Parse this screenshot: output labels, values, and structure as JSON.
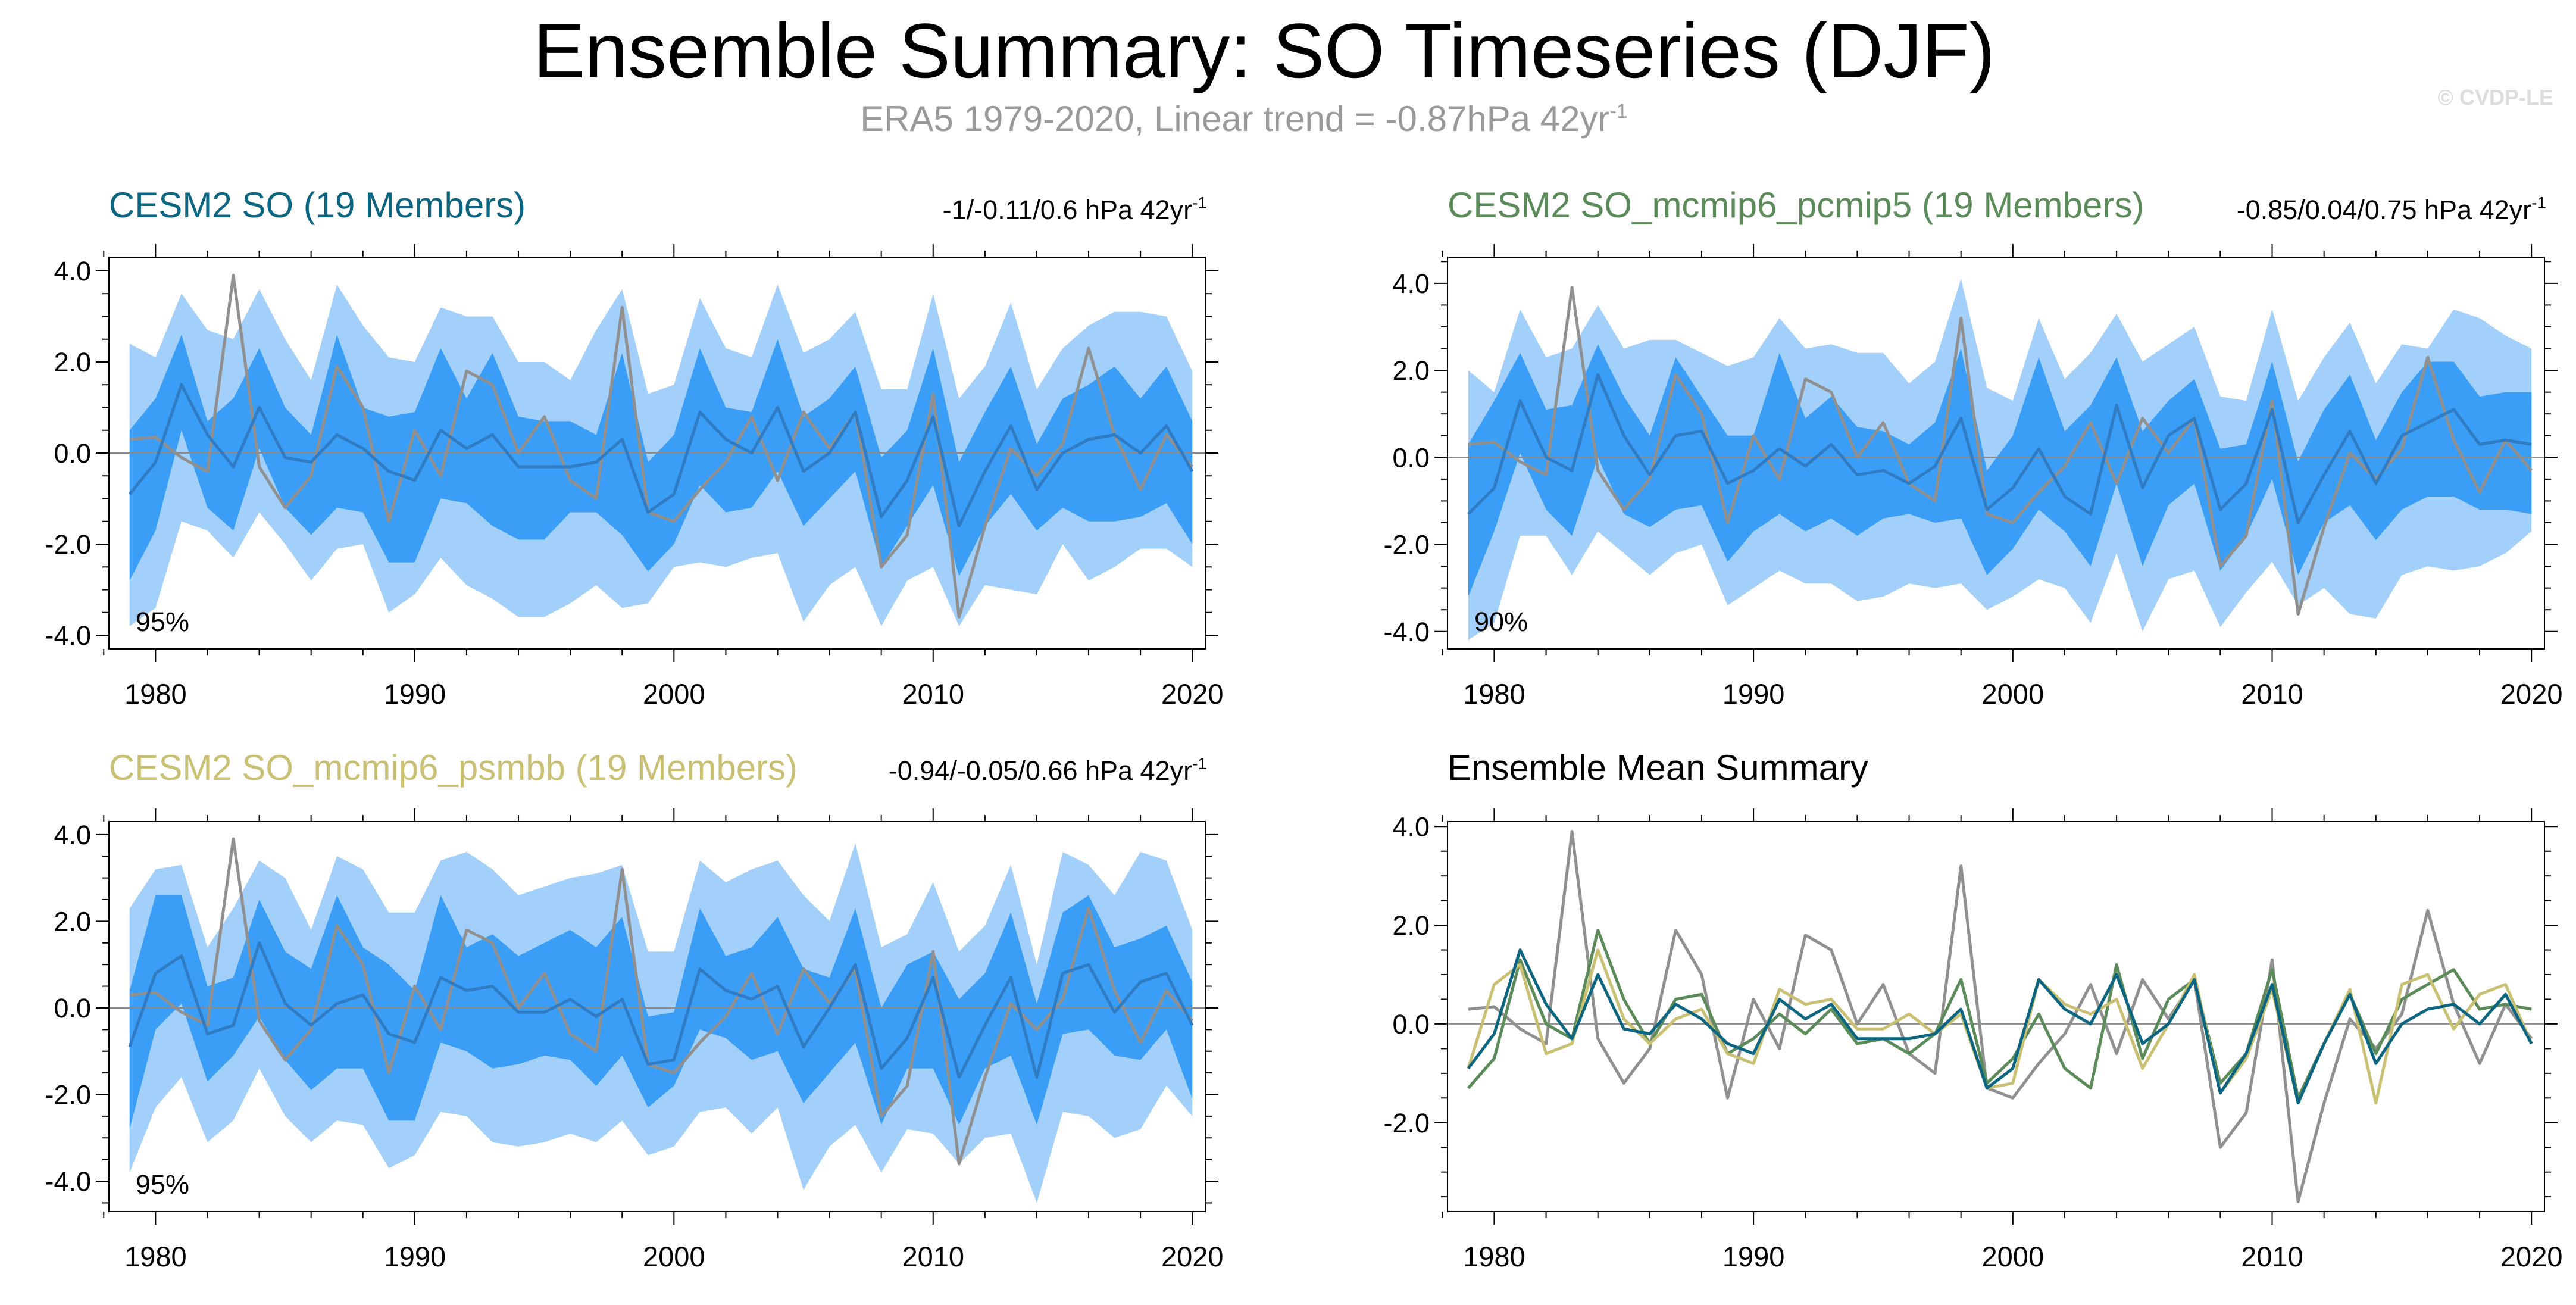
{
  "title": "Ensemble Summary: SO Timeseries (DJF)",
  "subtitle": "ERA5 1979-2020, Linear trend = -0.87hPa 42yr",
  "subtitle_sup": "-1",
  "watermark": "© CVDP-LE",
  "colors": {
    "outer_band": "#a3d0fa",
    "inner_band": "#3b9ef6",
    "ens_mean": "#2f7cc4",
    "obs": "#909090",
    "cesm2": "#0d6681",
    "mcmip6_pcmip5": "#5a8b58",
    "mcmip6_psmbb": "#c9c074"
  },
  "panels": {
    "p1": {
      "title": "CESM2 SO (19 Members)",
      "trend": "-1/-0.11/0.6 hPa 42yr",
      "trend_sup": "-1",
      "pct": "95%",
      "title_color": "#0d6681"
    },
    "p2": {
      "title": "CESM2 SO_mcmip6_pcmip5 (19 Members)",
      "trend": "-0.85/0.04/0.75 hPa 42yr",
      "trend_sup": "-1",
      "pct": "90%",
      "title_color": "#5a8b58"
    },
    "p3": {
      "title": "CESM2 SO_mcmip6_psmbb (19 Members)",
      "trend": "-0.94/-0.05/0.66 hPa 42yr",
      "trend_sup": "-1",
      "pct": "95%",
      "title_color": "#c9c074"
    },
    "p4": {
      "title": "Ensemble Mean Summary",
      "title_color": "#000000"
    }
  },
  "chart_data": [
    {
      "type": "area",
      "id": "p1",
      "title": "CESM2 SO (19 Members)",
      "x": [
        1979,
        1980,
        1981,
        1982,
        1983,
        1984,
        1985,
        1986,
        1987,
        1988,
        1989,
        1990,
        1991,
        1992,
        1993,
        1994,
        1995,
        1996,
        1997,
        1998,
        1999,
        2000,
        2001,
        2002,
        2003,
        2004,
        2005,
        2006,
        2007,
        2008,
        2009,
        2010,
        2011,
        2012,
        2013,
        2014,
        2015,
        2016,
        2017,
        2018,
        2019,
        2020
      ],
      "xticks": [
        "1980",
        "1990",
        "2000",
        "2010",
        "2020"
      ],
      "xlim": [
        1978.2,
        2020.5
      ],
      "ylim": [
        -4.3,
        4.3
      ],
      "yticks": [
        "4.0",
        "2.0",
        "0.0",
        "-2.0",
        "-4.0"
      ],
      "ytick_values": [
        4,
        2,
        0,
        -2,
        -4
      ],
      "obs": [
        0.3,
        0.35,
        -0.1,
        -0.4,
        3.9,
        -0.3,
        -1.2,
        -0.5,
        1.9,
        1.0,
        -1.5,
        0.5,
        -0.5,
        1.8,
        1.5,
        0.0,
        0.8,
        -0.6,
        -1.0,
        3.2,
        -1.3,
        -1.5,
        -0.8,
        -0.2,
        0.8,
        -0.6,
        0.9,
        0.1,
        0.9,
        -2.5,
        -1.8,
        1.3,
        -3.6,
        -1.6,
        0.1,
        -0.5,
        0.2,
        2.3,
        0.4,
        -0.8,
        0.4,
        -0.3
      ],
      "mean": [
        -0.9,
        -0.2,
        1.5,
        0.4,
        -0.3,
        1.0,
        -0.1,
        -0.2,
        0.4,
        0.1,
        -0.4,
        -0.6,
        0.5,
        0.1,
        0.4,
        -0.3,
        -0.3,
        -0.3,
        -0.2,
        0.3,
        -1.3,
        -0.9,
        0.9,
        0.3,
        0.0,
        1.0,
        -0.4,
        0.0,
        0.9,
        -1.4,
        -0.6,
        0.8,
        -1.6,
        -0.4,
        0.6,
        -0.8,
        0.0,
        0.3,
        0.4,
        0.0,
        0.6,
        -0.4
      ],
      "inner_upper": [
        0.5,
        1.2,
        2.6,
        0.7,
        1.2,
        2.3,
        1.0,
        0.4,
        2.6,
        1.0,
        0.8,
        0.9,
        2.3,
        1.2,
        2.2,
        0.8,
        0.7,
        0.7,
        0.4,
        2.2,
        -0.2,
        0.4,
        2.3,
        1.0,
        0.9,
        2.5,
        0.8,
        1.2,
        1.9,
        -0.1,
        0.5,
        2.3,
        -0.2,
        0.9,
        1.9,
        0.2,
        1.2,
        1.5,
        1.9,
        1.2,
        1.9,
        0.7
      ],
      "inner_lower": [
        -2.8,
        -1.7,
        0.5,
        -1.2,
        -1.7,
        0.1,
        -1.2,
        -1.8,
        -1.2,
        -1.3,
        -2.4,
        -2.4,
        -1.0,
        -1.1,
        -1.6,
        -1.9,
        -1.9,
        -1.3,
        -1.3,
        -1.8,
        -2.6,
        -2.0,
        -0.7,
        -1.3,
        -1.2,
        -0.4,
        -1.6,
        -1.0,
        -0.4,
        -2.5,
        -1.6,
        -0.7,
        -2.7,
        -1.6,
        -0.9,
        -1.7,
        -1.2,
        -1.5,
        -1.5,
        -1.4,
        -1.1,
        -2.0
      ],
      "outer_upper": [
        2.4,
        2.1,
        3.5,
        2.7,
        2.5,
        3.6,
        2.5,
        1.6,
        3.7,
        2.8,
        2.1,
        2.0,
        3.2,
        3.0,
        3.0,
        2.0,
        2.0,
        1.6,
        2.7,
        3.6,
        1.3,
        1.5,
        3.4,
        2.3,
        2.1,
        3.7,
        2.2,
        2.5,
        3.1,
        1.4,
        1.4,
        3.5,
        1.2,
        1.9,
        3.3,
        1.4,
        2.3,
        2.8,
        3.1,
        3.1,
        3.0,
        1.8
      ],
      "outer_lower": [
        -3.8,
        -3.4,
        -1.5,
        -1.7,
        -2.3,
        -1.3,
        -2.0,
        -2.8,
        -2.1,
        -2.0,
        -3.5,
        -3.1,
        -2.3,
        -2.9,
        -3.2,
        -3.6,
        -3.6,
        -3.3,
        -2.9,
        -3.4,
        -3.3,
        -2.5,
        -2.4,
        -2.5,
        -2.3,
        -2.2,
        -3.7,
        -2.9,
        -2.5,
        -3.8,
        -2.8,
        -2.5,
        -3.8,
        -2.9,
        -3.0,
        -3.1,
        -2.0,
        -2.8,
        -2.5,
        -2.1,
        -2.1,
        -2.5
      ]
    },
    {
      "type": "area",
      "id": "p2",
      "title": "CESM2 SO_mcmip6_pcmip5 (19 Members)",
      "x": [
        1979,
        1980,
        1981,
        1982,
        1983,
        1984,
        1985,
        1986,
        1987,
        1988,
        1989,
        1990,
        1991,
        1992,
        1993,
        1994,
        1995,
        1996,
        1997,
        1998,
        1999,
        2000,
        2001,
        2002,
        2003,
        2004,
        2005,
        2006,
        2007,
        2008,
        2009,
        2010,
        2011,
        2012,
        2013,
        2014,
        2015,
        2016,
        2017,
        2018,
        2019,
        2020
      ],
      "xticks": [
        "1980",
        "1990",
        "2000",
        "2010",
        "2020"
      ],
      "xlim": [
        1978.2,
        2020.5
      ],
      "ylim": [
        -4.4,
        4.6
      ],
      "yticks": [
        "4.0",
        "2.0",
        "0.0",
        "-2.0",
        "-4.0"
      ],
      "ytick_values": [
        4,
        2,
        0,
        -2,
        -4
      ],
      "obs": [
        0.3,
        0.35,
        -0.1,
        -0.4,
        3.9,
        -0.3,
        -1.2,
        -0.5,
        1.9,
        1.0,
        -1.5,
        0.5,
        -0.5,
        1.8,
        1.5,
        0.0,
        0.8,
        -0.6,
        -1.0,
        3.2,
        -1.3,
        -1.5,
        -0.8,
        -0.2,
        0.8,
        -0.6,
        0.9,
        0.1,
        0.9,
        -2.5,
        -1.8,
        1.3,
        -3.6,
        -1.6,
        0.1,
        -0.5,
        0.2,
        2.3,
        0.4,
        -0.8,
        0.4,
        -0.3
      ],
      "mean": [
        -1.3,
        -0.7,
        1.3,
        0.0,
        -0.3,
        1.9,
        0.5,
        -0.4,
        0.5,
        0.6,
        -0.6,
        -0.3,
        0.2,
        -0.2,
        0.3,
        -0.4,
        -0.3,
        -0.6,
        -0.2,
        0.9,
        -1.2,
        -0.7,
        0.2,
        -0.9,
        -1.3,
        1.2,
        -0.7,
        0.5,
        0.9,
        -1.2,
        -0.6,
        1.1,
        -1.5,
        -0.4,
        0.6,
        -0.6,
        0.5,
        0.8,
        1.1,
        0.3,
        0.4,
        0.3
      ],
      "inner_upper": [
        0.3,
        1.3,
        2.4,
        1.1,
        1.2,
        2.6,
        1.4,
        0.5,
        2.3,
        1.4,
        0.5,
        0.5,
        2.4,
        0.9,
        1.4,
        0.7,
        0.6,
        0.3,
        0.8,
        2.5,
        -0.3,
        0.5,
        2.3,
        0.6,
        1.2,
        2.3,
        0.6,
        1.3,
        1.8,
        0.2,
        0.3,
        2.2,
        -0.1,
        1.1,
        1.9,
        0.4,
        1.5,
        2.2,
        2.2,
        1.4,
        1.5,
        1.5
      ],
      "inner_lower": [
        -3.2,
        -1.7,
        0.1,
        -1.2,
        -1.8,
        0.0,
        -1.3,
        -1.6,
        -1.2,
        -1.1,
        -2.4,
        -1.7,
        -1.3,
        -1.7,
        -1.4,
        -1.8,
        -1.4,
        -1.3,
        -1.5,
        -1.4,
        -2.7,
        -2.1,
        -1.2,
        -1.7,
        -2.5,
        -0.6,
        -2.5,
        -1.1,
        -0.6,
        -2.6,
        -1.8,
        -0.5,
        -2.7,
        -1.5,
        -1.1,
        -1.9,
        -1.2,
        -0.9,
        -0.9,
        -1.2,
        -1.2,
        -1.3
      ],
      "outer_upper": [
        2.0,
        1.5,
        3.4,
        2.3,
        2.5,
        3.5,
        2.5,
        2.7,
        2.7,
        2.4,
        2.1,
        2.3,
        3.2,
        2.5,
        2.6,
        2.4,
        2.4,
        1.7,
        2.2,
        4.1,
        1.6,
        1.3,
        3.2,
        1.8,
        2.4,
        3.3,
        2.2,
        2.6,
        3.0,
        1.4,
        1.3,
        3.4,
        1.3,
        2.3,
        3.1,
        1.7,
        2.6,
        2.5,
        3.4,
        3.2,
        2.8,
        2.5
      ],
      "outer_lower": [
        -4.2,
        -3.8,
        -1.8,
        -1.8,
        -2.7,
        -1.7,
        -2.2,
        -2.7,
        -2.2,
        -2.0,
        -3.4,
        -3.0,
        -2.6,
        -2.9,
        -2.9,
        -3.3,
        -3.2,
        -2.9,
        -3.0,
        -2.9,
        -3.5,
        -3.2,
        -2.8,
        -3.0,
        -3.8,
        -2.2,
        -4.0,
        -2.8,
        -2.6,
        -3.9,
        -3.1,
        -2.4,
        -3.4,
        -3.0,
        -3.6,
        -3.7,
        -2.7,
        -2.5,
        -2.6,
        -2.5,
        -2.2,
        -1.7
      ]
    },
    {
      "type": "area",
      "id": "p3",
      "title": "CESM2 SO_mcmip6_psmbb (19 Members)",
      "x": [
        1979,
        1980,
        1981,
        1982,
        1983,
        1984,
        1985,
        1986,
        1987,
        1988,
        1989,
        1990,
        1991,
        1992,
        1993,
        1994,
        1995,
        1996,
        1997,
        1998,
        1999,
        2000,
        2001,
        2002,
        2003,
        2004,
        2005,
        2006,
        2007,
        2008,
        2009,
        2010,
        2011,
        2012,
        2013,
        2014,
        2015,
        2016,
        2017,
        2018,
        2019,
        2020
      ],
      "xticks": [
        "1980",
        "1990",
        "2000",
        "2010",
        "2020"
      ],
      "xlim": [
        1978.2,
        2020.5
      ],
      "ylim": [
        -4.7,
        4.3
      ],
      "yticks": [
        "4.0",
        "2.0",
        "0.0",
        "-2.0",
        "-4.0"
      ],
      "ytick_values": [
        4,
        2,
        0,
        -2,
        -4
      ],
      "obs": [
        0.3,
        0.35,
        -0.1,
        -0.4,
        3.9,
        -0.3,
        -1.2,
        -0.5,
        1.9,
        1.0,
        -1.5,
        0.5,
        -0.5,
        1.8,
        1.5,
        0.0,
        0.8,
        -0.6,
        -1.0,
        3.2,
        -1.3,
        -1.5,
        -0.8,
        -0.2,
        0.8,
        -0.6,
        0.9,
        0.1,
        0.9,
        -2.5,
        -1.8,
        1.3,
        -3.6,
        -1.6,
        0.1,
        -0.5,
        0.2,
        2.3,
        0.4,
        -0.8,
        0.4,
        -0.3
      ],
      "mean": [
        -0.9,
        0.8,
        1.2,
        -0.6,
        -0.4,
        1.5,
        0.1,
        -0.4,
        0.1,
        0.3,
        -0.6,
        -0.8,
        0.7,
        0.4,
        0.5,
        -0.1,
        -0.1,
        0.2,
        -0.2,
        0.2,
        -1.3,
        -1.2,
        0.9,
        0.4,
        0.2,
        0.5,
        -0.9,
        0.0,
        1.0,
        -1.4,
        -0.7,
        0.7,
        -1.6,
        -0.4,
        0.7,
        -1.6,
        0.8,
        1.0,
        -0.1,
        0.6,
        0.8,
        -0.4
      ],
      "inner_upper": [
        0.4,
        2.6,
        2.6,
        0.5,
        0.7,
        2.5,
        1.3,
        0.9,
        2.6,
        1.4,
        1.0,
        0.4,
        2.6,
        1.4,
        1.7,
        1.2,
        1.5,
        1.8,
        1.4,
        2.1,
        -0.2,
        -0.1,
        2.3,
        1.2,
        1.4,
        2.1,
        0.9,
        0.7,
        2.3,
        0.0,
        1.0,
        1.3,
        0.2,
        0.8,
        2.2,
        0.1,
        2.2,
        2.6,
        1.4,
        1.6,
        1.9,
        0.6
      ],
      "inner_lower": [
        -2.8,
        -0.5,
        0.1,
        -1.7,
        -1.1,
        -0.2,
        -1.2,
        -1.9,
        -1.4,
        -1.4,
        -2.6,
        -2.6,
        -0.8,
        -1.0,
        -1.4,
        -1.3,
        -1.1,
        -1.2,
        -1.8,
        -1.1,
        -2.3,
        -1.8,
        -0.5,
        -0.7,
        -1.2,
        -1.0,
        -2.2,
        -1.5,
        -0.8,
        -2.7,
        -1.4,
        -1.4,
        -2.7,
        -1.4,
        -1.1,
        -2.7,
        -0.6,
        -0.5,
        -1.1,
        -1.2,
        -0.5,
        -2.1
      ],
      "outer_upper": [
        2.3,
        3.2,
        3.3,
        1.4,
        2.3,
        3.4,
        3.0,
        1.8,
        3.5,
        3.2,
        2.2,
        2.2,
        3.4,
        3.6,
        3.2,
        2.6,
        2.8,
        3.0,
        3.1,
        3.3,
        1.3,
        1.3,
        3.4,
        2.9,
        3.2,
        3.4,
        2.6,
        2.0,
        3.8,
        1.4,
        1.7,
        2.9,
        1.3,
        1.9,
        3.3,
        1.0,
        3.6,
        3.3,
        2.6,
        3.6,
        3.4,
        1.8
      ],
      "outer_lower": [
        -3.8,
        -2.3,
        -1.6,
        -3.1,
        -2.6,
        -1.4,
        -2.5,
        -3.1,
        -2.6,
        -2.7,
        -3.7,
        -3.4,
        -2.4,
        -2.5,
        -3.1,
        -3.2,
        -3.1,
        -2.9,
        -3.1,
        -2.6,
        -3.4,
        -3.2,
        -2.4,
        -2.3,
        -2.9,
        -2.3,
        -4.2,
        -3.2,
        -2.7,
        -3.8,
        -2.8,
        -2.9,
        -3.6,
        -3.0,
        -2.9,
        -4.5,
        -2.4,
        -2.5,
        -3.0,
        -2.8,
        -1.8,
        -2.5
      ]
    },
    {
      "type": "line",
      "id": "p4",
      "title": "Ensemble Mean Summary",
      "x": [
        1979,
        1980,
        1981,
        1982,
        1983,
        1984,
        1985,
        1986,
        1987,
        1988,
        1989,
        1990,
        1991,
        1992,
        1993,
        1994,
        1995,
        1996,
        1997,
        1998,
        1999,
        2000,
        2001,
        2002,
        2003,
        2004,
        2005,
        2006,
        2007,
        2008,
        2009,
        2010,
        2011,
        2012,
        2013,
        2014,
        2015,
        2016,
        2017,
        2018,
        2019,
        2020
      ],
      "xticks": [
        "1980",
        "1990",
        "2000",
        "2010",
        "2020"
      ],
      "xlim": [
        1978.2,
        2020.5
      ],
      "ylim": [
        -3.8,
        4.1
      ],
      "yticks": [
        "4.0",
        "2.0",
        "0.0",
        "-2.0"
      ],
      "ytick_values": [
        4,
        2,
        0,
        -2
      ],
      "series": [
        {
          "name": "ERA5",
          "color": "#909090",
          "values": [
            0.3,
            0.35,
            -0.1,
            -0.4,
            3.9,
            -0.3,
            -1.2,
            -0.5,
            1.9,
            1.0,
            -1.5,
            0.5,
            -0.5,
            1.8,
            1.5,
            0.0,
            0.8,
            -0.6,
            -1.0,
            3.2,
            -1.3,
            -1.5,
            -0.8,
            -0.2,
            0.8,
            -0.6,
            0.9,
            0.1,
            0.9,
            -2.5,
            -1.8,
            1.3,
            -3.6,
            -1.6,
            0.1,
            -0.5,
            0.2,
            2.3,
            0.4,
            -0.8,
            0.4,
            -0.3
          ]
        },
        {
          "name": "CESM2 SO_mcmip6_pcmip5",
          "color": "#5a8b58",
          "values": [
            -1.3,
            -0.7,
            1.3,
            0.0,
            -0.3,
            1.9,
            0.5,
            -0.4,
            0.5,
            0.6,
            -0.6,
            -0.3,
            0.2,
            -0.2,
            0.3,
            -0.4,
            -0.3,
            -0.6,
            -0.2,
            0.9,
            -1.2,
            -0.7,
            0.2,
            -0.9,
            -1.3,
            1.2,
            -0.7,
            0.5,
            0.9,
            -1.2,
            -0.6,
            1.1,
            -1.5,
            -0.4,
            0.6,
            -0.6,
            0.5,
            0.8,
            1.1,
            0.3,
            0.4,
            0.3
          ]
        },
        {
          "name": "CESM2 SO_mcmip6_psmbb",
          "color": "#c9c074",
          "values": [
            -0.9,
            0.8,
            1.2,
            -0.6,
            -0.4,
            1.5,
            0.1,
            -0.4,
            0.1,
            0.3,
            -0.6,
            -0.8,
            0.7,
            0.4,
            0.5,
            -0.1,
            -0.1,
            0.2,
            -0.2,
            0.2,
            -1.3,
            -1.2,
            0.9,
            0.4,
            0.2,
            0.5,
            -0.9,
            0.0,
            1.0,
            -1.4,
            -0.7,
            0.7,
            -1.6,
            -0.4,
            0.7,
            -1.6,
            0.8,
            1.0,
            -0.1,
            0.6,
            0.8,
            -0.4
          ]
        },
        {
          "name": "CESM2 SO",
          "color": "#0d6681",
          "values": [
            -0.9,
            -0.2,
            1.5,
            0.4,
            -0.3,
            1.0,
            -0.1,
            -0.2,
            0.4,
            0.1,
            -0.4,
            -0.6,
            0.5,
            0.1,
            0.4,
            -0.3,
            -0.3,
            -0.3,
            -0.2,
            0.3,
            -1.3,
            -0.9,
            0.9,
            0.3,
            0.0,
            1.0,
            -0.4,
            0.0,
            0.9,
            -1.4,
            -0.6,
            0.8,
            -1.6,
            -0.4,
            0.6,
            -0.8,
            0.0,
            0.3,
            0.4,
            0.0,
            0.6,
            -0.4
          ]
        }
      ]
    }
  ]
}
